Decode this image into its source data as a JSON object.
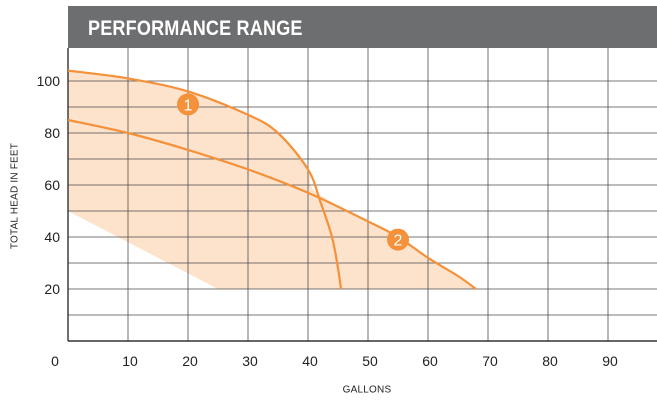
{
  "chart_data": {
    "type": "area",
    "title": "PERFORMANCE RANGE",
    "xlabel": "GALLONS",
    "ylabel": "TOTAL HEAD IN FEET",
    "xlim": [
      0,
      98
    ],
    "ylim": [
      0,
      108
    ],
    "x_ticks": [
      0,
      10,
      20,
      30,
      40,
      50,
      60,
      70,
      80,
      90
    ],
    "y_ticks": [
      20,
      40,
      60,
      80,
      100
    ],
    "grid": true,
    "series": [
      {
        "name": "1",
        "x": [
          0,
          10,
          20,
          30,
          35,
          40,
          42,
          44,
          45,
          45.5
        ],
        "y": [
          104,
          101,
          96,
          87,
          80,
          66,
          54,
          40,
          28,
          20
        ]
      },
      {
        "name": "2",
        "x": [
          0,
          10,
          20,
          30,
          40,
          50,
          55,
          60,
          65,
          68
        ],
        "y": [
          85,
          80,
          73.5,
          66,
          57,
          46,
          40,
          32,
          25,
          20
        ]
      }
    ],
    "shaded_region": {
      "lower_x": [
        0,
        25
      ],
      "lower_y": [
        50,
        20
      ]
    },
    "markers": [
      {
        "label": "1",
        "x": 20,
        "y": 91
      },
      {
        "label": "2",
        "x": 55,
        "y": 39
      }
    ],
    "colors": {
      "curve": "#f4913a",
      "fill": "#fde3cc",
      "grid": "#4d4d4d",
      "title_bg": "#6d6e70"
    }
  }
}
